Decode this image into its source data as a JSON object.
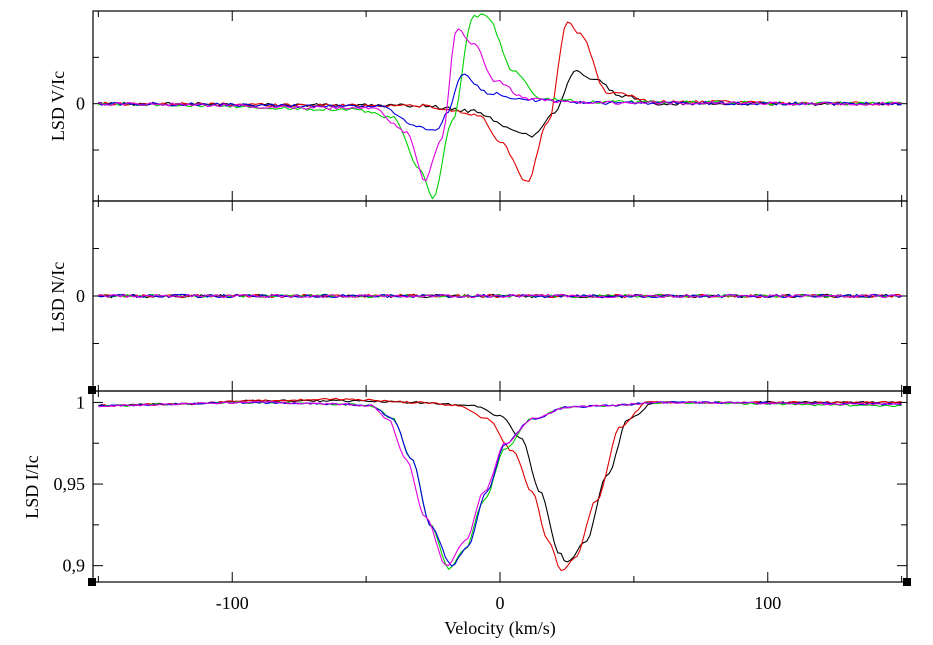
{
  "chart_data": {
    "type": "line",
    "title": "",
    "xlabel": "Velocity (km/s)",
    "xlim": [
      -152,
      152
    ],
    "xticks": [
      -100,
      0,
      100
    ],
    "xtick_labels": [
      "-100",
      "0",
      "100"
    ],
    "series_colors": {
      "black": "#000000",
      "red": "#e00000",
      "green": "#00d000",
      "blue": "#0000e0",
      "magenta": "#e000e0"
    },
    "panels": [
      {
        "name": "stokes-v",
        "ylabel": "LSD V/Ic",
        "ylim": [
          -1.05,
          1.0
        ],
        "yticks": [
          0
        ],
        "ytick_labels": [
          "0"
        ],
        "series": [
          {
            "name": "black",
            "points": [
              [
                -150,
                0
              ],
              [
                -30,
                -0.02
              ],
              [
                -10,
                -0.08
              ],
              [
                5,
                -0.28
              ],
              [
                12,
                -0.35
              ],
              [
                20,
                -0.1
              ],
              [
                28,
                0.35
              ],
              [
                36,
                0.25
              ],
              [
                45,
                0.08
              ],
              [
                60,
                0
              ],
              [
                150,
                0
              ]
            ]
          },
          {
            "name": "red",
            "points": [
              [
                -150,
                0
              ],
              [
                -30,
                -0.02
              ],
              [
                -20,
                -0.07
              ],
              [
                -8,
                -0.12
              ],
              [
                0,
                -0.4
              ],
              [
                10,
                -0.85
              ],
              [
                18,
                -0.2
              ],
              [
                25,
                0.88
              ],
              [
                30,
                0.75
              ],
              [
                40,
                0.12
              ],
              [
                60,
                0.02
              ],
              [
                150,
                0
              ]
            ]
          },
          {
            "name": "green",
            "points": [
              [
                -150,
                0
              ],
              [
                -55,
                -0.06
              ],
              [
                -40,
                -0.15
              ],
              [
                -30,
                -0.7
              ],
              [
                -25,
                -1.03
              ],
              [
                -18,
                -0.2
              ],
              [
                -10,
                0.95
              ],
              [
                -5,
                0.95
              ],
              [
                5,
                0.35
              ],
              [
                15,
                0.05
              ],
              [
                35,
                0.02
              ],
              [
                150,
                0
              ]
            ]
          },
          {
            "name": "blue",
            "points": [
              [
                -150,
                0
              ],
              [
                -45,
                -0.03
              ],
              [
                -30,
                -0.25
              ],
              [
                -24,
                -0.3
              ],
              [
                -20,
                -0.12
              ],
              [
                -14,
                0.32
              ],
              [
                -5,
                0.12
              ],
              [
                10,
                0.04
              ],
              [
                30,
                0.01
              ],
              [
                150,
                0
              ]
            ]
          },
          {
            "name": "magenta",
            "points": [
              [
                -150,
                0
              ],
              [
                -48,
                -0.05
              ],
              [
                -35,
                -0.3
              ],
              [
                -28,
                -0.82
              ],
              [
                -22,
                -0.4
              ],
              [
                -16,
                0.8
              ],
              [
                -10,
                0.65
              ],
              [
                -2,
                0.25
              ],
              [
                10,
                0.05
              ],
              [
                30,
                0.01
              ],
              [
                150,
                0
              ]
            ]
          }
        ]
      },
      {
        "name": "null",
        "ylabel": "LSD N/Ic",
        "ylim": [
          -1.0,
          1.0
        ],
        "yticks": [
          0
        ],
        "ytick_labels": [
          "0"
        ],
        "series": [
          {
            "name": "black",
            "points": [
              [
                -150,
                0
              ],
              [
                150,
                0
              ]
            ]
          },
          {
            "name": "red",
            "points": [
              [
                -150,
                0
              ],
              [
                150,
                0
              ]
            ]
          },
          {
            "name": "green",
            "points": [
              [
                -150,
                0
              ],
              [
                150,
                0
              ]
            ]
          },
          {
            "name": "blue",
            "points": [
              [
                -150,
                0
              ],
              [
                150,
                0
              ]
            ]
          },
          {
            "name": "magenta",
            "points": [
              [
                -150,
                0
              ],
              [
                150,
                0
              ]
            ]
          }
        ]
      },
      {
        "name": "stokes-i",
        "ylabel": "LSD I/Ic",
        "ylim": [
          0.89,
          1.007
        ],
        "yticks": [
          0.9,
          0.95,
          1.0
        ],
        "ytick_labels": [
          "0,9",
          "0,95",
          "1"
        ],
        "series": [
          {
            "name": "black",
            "points": [
              [
                -150,
                0.998
              ],
              [
                -120,
                0.999
              ],
              [
                -90,
                1.001
              ],
              [
                -60,
                1.001
              ],
              [
                -30,
                1.0
              ],
              [
                -10,
                0.998
              ],
              [
                0,
                0.992
              ],
              [
                8,
                0.978
              ],
              [
                15,
                0.945
              ],
              [
                22,
                0.908
              ],
              [
                25,
                0.902
              ],
              [
                32,
                0.915
              ],
              [
                40,
                0.955
              ],
              [
                48,
                0.99
              ],
              [
                58,
                1.0
              ],
              [
                150,
                1.0
              ]
            ]
          },
          {
            "name": "red",
            "points": [
              [
                -150,
                0.998
              ],
              [
                -120,
                0.999
              ],
              [
                -90,
                1.001
              ],
              [
                -60,
                1.002
              ],
              [
                -30,
                1.0
              ],
              [
                -15,
                0.998
              ],
              [
                -5,
                0.99
              ],
              [
                5,
                0.97
              ],
              [
                12,
                0.945
              ],
              [
                18,
                0.915
              ],
              [
                23,
                0.897
              ],
              [
                28,
                0.905
              ],
              [
                36,
                0.94
              ],
              [
                45,
                0.985
              ],
              [
                55,
                1.0
              ],
              [
                150,
                1.0
              ]
            ]
          },
          {
            "name": "green",
            "points": [
              [
                -150,
                0.998
              ],
              [
                -90,
                1.0
              ],
              [
                -60,
                0.999
              ],
              [
                -48,
                0.998
              ],
              [
                -40,
                0.99
              ],
              [
                -33,
                0.965
              ],
              [
                -26,
                0.925
              ],
              [
                -19,
                0.898
              ],
              [
                -13,
                0.91
              ],
              [
                -6,
                0.94
              ],
              [
                2,
                0.972
              ],
              [
                12,
                0.99
              ],
              [
                25,
                0.997
              ],
              [
                40,
                0.998
              ],
              [
                60,
                1.0
              ],
              [
                150,
                0.998
              ]
            ]
          },
          {
            "name": "blue",
            "points": [
              [
                -150,
                0.998
              ],
              [
                -90,
                1.0
              ],
              [
                -60,
                0.999
              ],
              [
                -48,
                0.998
              ],
              [
                -40,
                0.99
              ],
              [
                -33,
                0.965
              ],
              [
                -26,
                0.925
              ],
              [
                -18,
                0.9
              ],
              [
                -12,
                0.912
              ],
              [
                -5,
                0.945
              ],
              [
                2,
                0.975
              ],
              [
                12,
                0.99
              ],
              [
                25,
                0.997
              ],
              [
                40,
                0.998
              ],
              [
                60,
                1.0
              ],
              [
                150,
                0.999
              ]
            ]
          },
          {
            "name": "magenta",
            "points": [
              [
                -150,
                0.998
              ],
              [
                -90,
                1.0
              ],
              [
                -60,
                0.999
              ],
              [
                -48,
                0.998
              ],
              [
                -42,
                0.99
              ],
              [
                -35,
                0.965
              ],
              [
                -28,
                0.93
              ],
              [
                -20,
                0.9
              ],
              [
                -13,
                0.915
              ],
              [
                -6,
                0.945
              ],
              [
                2,
                0.975
              ],
              [
                12,
                0.99
              ],
              [
                25,
                0.997
              ],
              [
                40,
                0.998
              ],
              [
                60,
                1.0
              ],
              [
                150,
                0.999
              ]
            ]
          }
        ]
      }
    ]
  }
}
